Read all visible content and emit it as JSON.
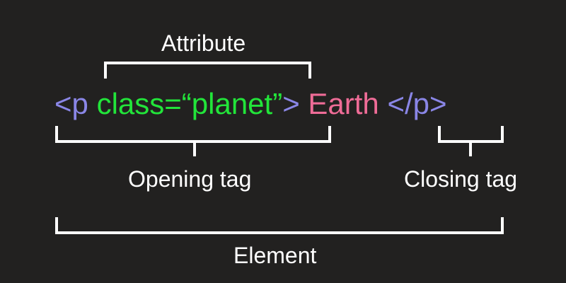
{
  "labels": {
    "attribute": "Attribute",
    "opening_tag": "Opening tag",
    "closing_tag": "Closing tag",
    "element": "Element"
  },
  "code": {
    "open_bracket": "<p ",
    "attribute": "class=“planet”",
    "close_bracket": ">",
    "content": " Earth ",
    "closing_tag": "</p>"
  },
  "colors": {
    "background": "#222120",
    "tag": "#8a86e6",
    "attribute": "#22e53a",
    "content": "#ef6c97",
    "label": "#ffffff"
  }
}
